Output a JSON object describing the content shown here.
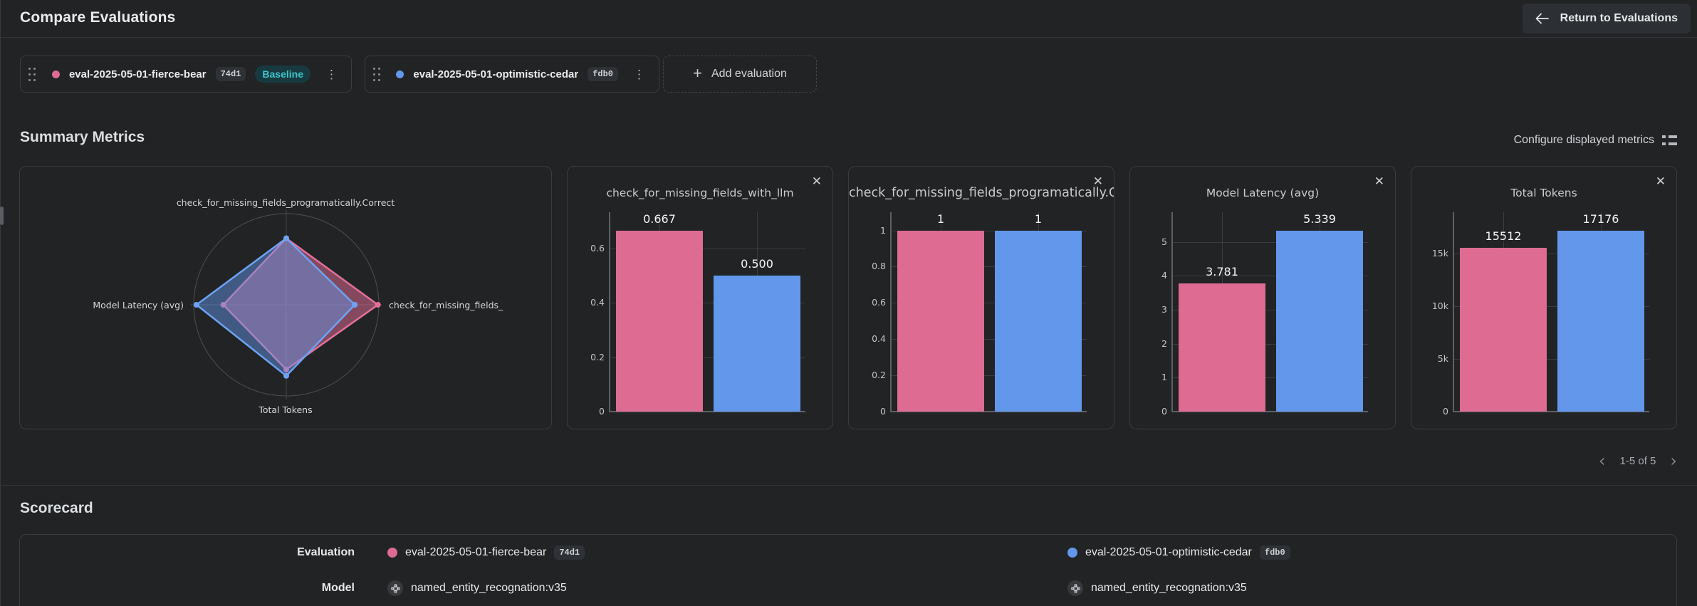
{
  "page": {
    "title": "Compare Evaluations",
    "return_button_label": "Return to Evaluations"
  },
  "toolbar": {
    "add_evaluation_label": "Add evaluation"
  },
  "evaluations": [
    {
      "name": "eval-2025-05-01-fierce-bear",
      "hash": "74d1",
      "baseline_label": "Baseline",
      "color": "#dd6b92",
      "line_color": "#e2709a",
      "fill_color": "rgba(224,110,148,0.52)"
    },
    {
      "name": "eval-2025-05-01-optimistic-cedar",
      "hash": "fdb0",
      "color": "#6297ec",
      "line_color": "#6ea2f3",
      "fill_color": "rgba(100,152,237,0.47)"
    }
  ],
  "summary_metrics": {
    "heading": "Summary Metrics",
    "configure_label": "Configure displayed metrics"
  },
  "pagination": {
    "range_label": "1-5 of 5",
    "prev": "‹",
    "next": "›"
  },
  "scorecard": {
    "heading": "Scorecard",
    "row_labels": {
      "evaluation": "Evaluation",
      "model": "Model"
    },
    "models": [
      "named_entity_recognation:v35",
      "named_entity_recognation:v35"
    ]
  },
  "chart_data": [
    {
      "type": "radar",
      "axes": [
        "check_for_missing_fields_programatically.Correct",
        "check_for_missing_fields_",
        "Total Tokens",
        "Model Latency (avg)"
      ],
      "series": [
        {
          "name": "eval-2025-05-01-fierce-bear",
          "values": [
            1,
            0.667,
            15512,
            3.781
          ],
          "normalized": [
            0.73,
            0.99,
            0.71,
            0.68
          ]
        },
        {
          "name": "eval-2025-05-01-optimistic-cedar",
          "values": [
            1,
            0.5,
            17176,
            5.339
          ],
          "normalized": [
            0.73,
            0.74,
            0.78,
            0.97
          ]
        }
      ]
    },
    {
      "type": "bar",
      "title": "check_for_missing_fields_with_llm",
      "categories": [
        "eval-2025-05-01-fierce-bear",
        "eval-2025-05-01-optimistic-cedar"
      ],
      "values": [
        0.667,
        0.5
      ],
      "value_labels": [
        "0.667",
        "0.500"
      ],
      "ytick_values": [
        0,
        0.2,
        0.4,
        0.6
      ],
      "ytick_labels": [
        "0",
        "0.2",
        "0.4",
        "0.6"
      ],
      "ylim": [
        0,
        0.7337
      ]
    },
    {
      "type": "bar",
      "title": "check_for_missing_fields_programatically.Correct",
      "categories": [
        "eval-2025-05-01-fierce-bear",
        "eval-2025-05-01-optimistic-cedar"
      ],
      "values": [
        1,
        1
      ],
      "value_labels": [
        "1",
        "1"
      ],
      "ytick_values": [
        0,
        0.2,
        0.4,
        0.6,
        0.8,
        1
      ],
      "ytick_labels": [
        "0",
        "0.2",
        "0.4",
        "0.6",
        "0.8",
        "1"
      ],
      "ylim": [
        0,
        1.1
      ]
    },
    {
      "type": "bar",
      "title": "Model Latency (avg)",
      "categories": [
        "eval-2025-05-01-fierce-bear",
        "eval-2025-05-01-optimistic-cedar"
      ],
      "values": [
        3.781,
        5.339
      ],
      "value_labels": [
        "3.781",
        "5.339"
      ],
      "ytick_values": [
        0,
        1,
        2,
        3,
        4,
        5
      ],
      "ytick_labels": [
        "0",
        "1",
        "2",
        "3",
        "4",
        "5"
      ],
      "ylim": [
        0,
        5.8729
      ]
    },
    {
      "type": "bar",
      "title": "Total Tokens",
      "categories": [
        "eval-2025-05-01-fierce-bear",
        "eval-2025-05-01-optimistic-cedar"
      ],
      "values": [
        15512,
        17176
      ],
      "value_labels": [
        "15512",
        "17176"
      ],
      "ytick_values": [
        0,
        5000,
        10000,
        15000
      ],
      "ytick_labels": [
        "0",
        "5k",
        "10k",
        "15k"
      ],
      "ylim": [
        0,
        18893.6
      ]
    }
  ]
}
